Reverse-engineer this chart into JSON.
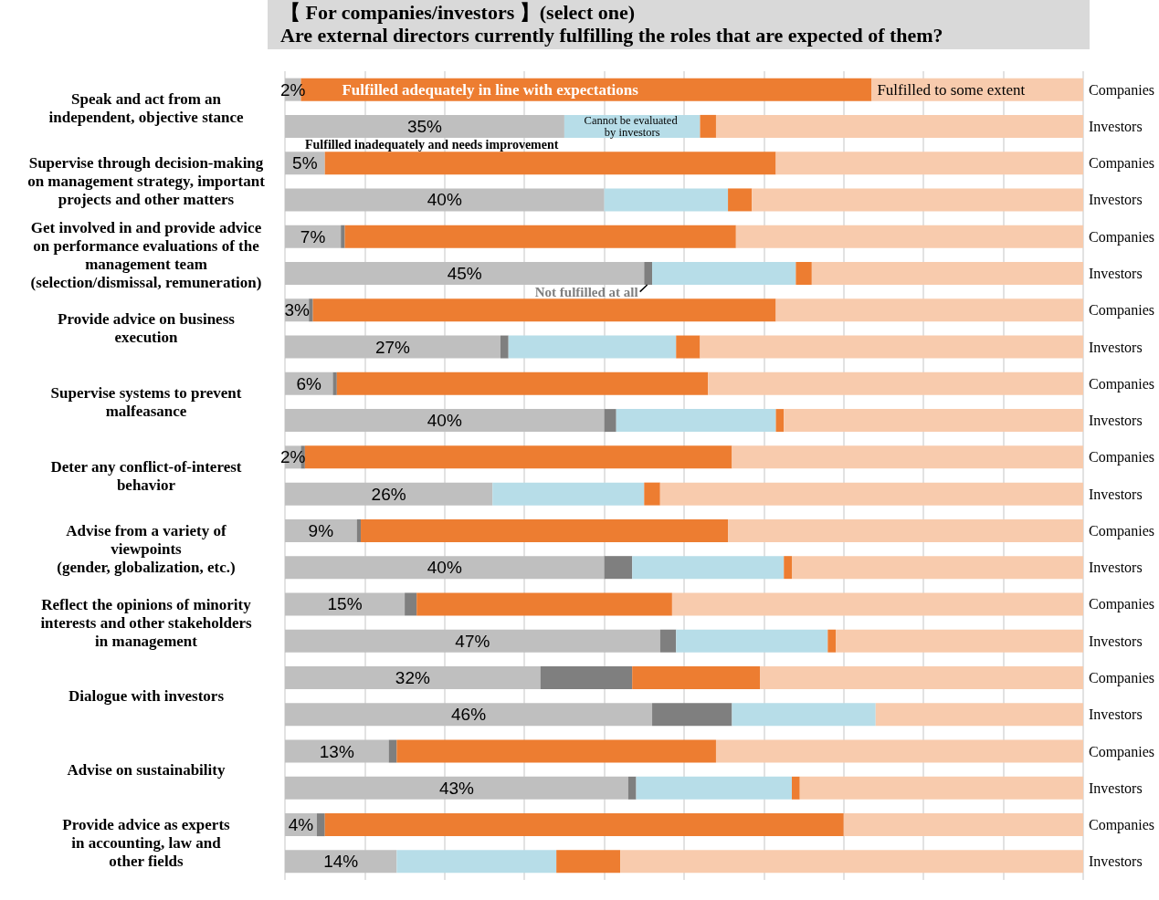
{
  "chart_data": {
    "type": "bar",
    "orientation": "horizontal",
    "stacked": true,
    "title": "【 For companies/investors 】(select one)",
    "subtitle": "Are external directors currently fulfilling the roles that are expected of them?",
    "categories": [
      "Companies",
      "Investors",
      "Companies",
      "Investors",
      "Companies",
      "Investors",
      "Companies",
      "Investors",
      "Companies",
      "Investors",
      "Companies",
      "Investors",
      "Companies",
      "Investors",
      "Companies",
      "Investors",
      "Companies",
      "Investors",
      "Companies",
      "Investors",
      "Companies",
      "Investors"
    ],
    "series": [
      {
        "name": "Fulfilled inadequately and needs improvement",
        "color": "#bfbfbf",
        "values": [
          2,
          35,
          5,
          40,
          7,
          45,
          3,
          27,
          6,
          40,
          2,
          26,
          9,
          40,
          15,
          47,
          32,
          46,
          13,
          43,
          4,
          14
        ],
        "value_labels": [
          "2%",
          "35%",
          "5%",
          "40%",
          "7%",
          "45%",
          "3%",
          "27%",
          "6%",
          "40%",
          "2%",
          "26%",
          "9%",
          "40%",
          "15%",
          "47%",
          "32%",
          "46%",
          "13%",
          "43%",
          "4%",
          "14%"
        ]
      },
      {
        "name": "Not fulfilled at all",
        "color": "#7f7f7f",
        "values": [
          null,
          null,
          null,
          null,
          0.5,
          1,
          0.5,
          1,
          0.5,
          1.5,
          0.5,
          null,
          0.5,
          3.5,
          1.5,
          2,
          11.5,
          10,
          1,
          1,
          1,
          null
        ]
      },
      {
        "name": "Cannot be evaluated by investors",
        "color": "#b7dde8",
        "values": [
          null,
          17,
          null,
          15.5,
          null,
          18,
          null,
          21,
          null,
          20,
          null,
          19,
          null,
          19,
          null,
          19,
          null,
          18,
          null,
          19.5,
          null,
          20
        ]
      },
      {
        "name": "Fulfilled adequately in line with expectations",
        "color": "#ed7d31",
        "values": [
          71.5,
          2,
          56.5,
          3,
          49,
          2,
          58,
          3,
          46.5,
          1,
          53.5,
          2,
          46,
          1,
          32,
          1,
          16,
          null,
          40,
          1,
          65,
          8
        ]
      },
      {
        "name": "Fulfilled to some extent",
        "color": "#f8cbad",
        "values": [
          26.5,
          46,
          38.5,
          41.5,
          43.5,
          34,
          38.5,
          48,
          47,
          37.5,
          44,
          53,
          44.5,
          36.5,
          51.5,
          31,
          40.5,
          26,
          46,
          35.5,
          30,
          58
        ]
      }
    ],
    "annotations": [
      "Speak and act from an\nindependent, objective stance",
      "Supervise through decision-making\non management strategy, important\nprojects and other matters",
      "Get involved in and provide advice\non performance evaluations of the\nmanagement team\n(selection/dismissal, remuneration)",
      "Provide advice on business\nexecution",
      "Supervise systems to prevent\nmalfeasance",
      "Deter any conflict-of-interest\nbehavior",
      "Advise from a variety of\nviewpoints\n(gender, globalization, etc.)",
      "Reflect the opinions of minority\ninterests and other stakeholders\nin management",
      "Dialogue with investors",
      "Advise on sustainability",
      "Provide advice as experts\nin accounting, law and\nother fields"
    ],
    "xlim": [
      0,
      100
    ],
    "xticks": [
      {
        "value": 0,
        "label": null
      },
      {
        "value": 10,
        "label": null
      },
      {
        "value": 20,
        "label": null
      },
      {
        "value": 30,
        "label": null
      },
      {
        "value": 40,
        "label": null
      },
      {
        "value": 50,
        "label": null
      },
      {
        "value": 60,
        "label": null
      },
      {
        "value": 70,
        "label": null
      },
      {
        "value": 80,
        "label": null
      },
      {
        "value": 90,
        "label": null
      },
      {
        "value": 100,
        "label": null
      }
    ],
    "grid": "x",
    "tick_labels": "y"
  }
}
